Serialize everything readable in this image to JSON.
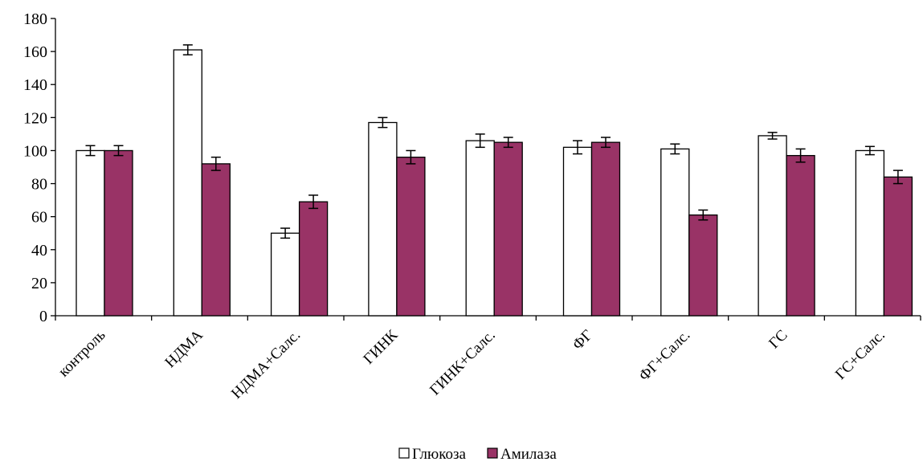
{
  "chart_data": {
    "type": "bar",
    "title": "",
    "xlabel": "",
    "ylabel": "",
    "ylim": [
      0,
      180
    ],
    "yticks": [
      0,
      20,
      40,
      60,
      80,
      100,
      120,
      140,
      160,
      180
    ],
    "grid": false,
    "legend_position": "bottom",
    "error_bars": true,
    "categories": [
      "контроль",
      "НДМА",
      "НДМА+Салс.",
      "ГИНК",
      "ГИНК+Салс.",
      "ФГ",
      "ФГ+Салс.",
      "ГС",
      "ГС+Салс."
    ],
    "series": [
      {
        "name": "Глюкоза",
        "color": "#ffffff",
        "values": [
          100,
          161,
          50,
          117,
          106,
          102,
          101,
          109,
          100
        ],
        "errors": [
          3,
          3,
          3,
          3,
          4,
          4,
          3,
          2,
          2.5
        ]
      },
      {
        "name": "Амилаза",
        "color": "#993366",
        "values": [
          100,
          92,
          69,
          96,
          105,
          105,
          61,
          97,
          84
        ],
        "errors": [
          3,
          4,
          4,
          4,
          3,
          3,
          3,
          4,
          4
        ]
      }
    ]
  }
}
